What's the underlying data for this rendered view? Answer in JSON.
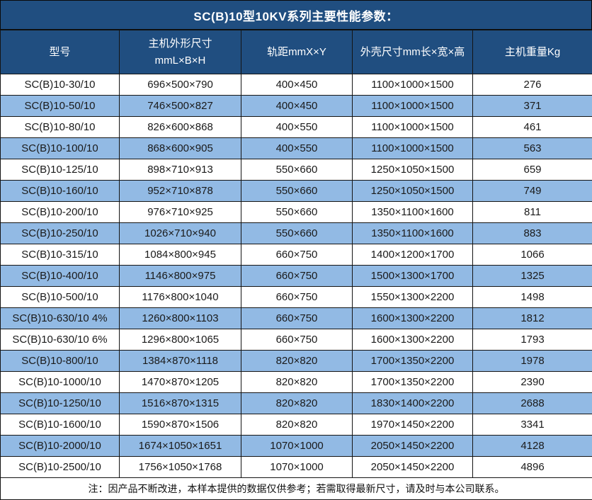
{
  "title": "SC(B)10型10KV系列主要性能参数：",
  "colors": {
    "header_bg": "#204E80",
    "alt_row_bg": "#92BAE4",
    "row_bg": "#FFFFFF",
    "header_text": "#FFFFFF",
    "body_text": "#1A1A1A",
    "border": "#141414"
  },
  "table": {
    "headers": {
      "model": "型号",
      "dims_line1": "主机外形尺寸",
      "dims_line2": "mmL×B×H",
      "rail": "轨距mmX×Y",
      "shell": "外壳尺寸mm长×宽×高",
      "weight": "主机重量Kg"
    },
    "rows": [
      [
        "SC(B)10-30/10",
        "696×500×790",
        "400×450",
        "1100×1000×1500",
        "276"
      ],
      [
        "SC(B)10-50/10",
        "746×500×827",
        "400×450",
        "1100×1000×1500",
        "371"
      ],
      [
        "SC(B)10-80/10",
        "826×600×868",
        "400×550",
        "1100×1000×1500",
        "461"
      ],
      [
        "SC(B)10-100/10",
        "868×600×905",
        "400×550",
        "1100×1000×1500",
        "563"
      ],
      [
        "SC(B)10-125/10",
        "898×710×913",
        "550×660",
        "1250×1050×1500",
        "659"
      ],
      [
        "SC(B)10-160/10",
        "952×710×878",
        "550×660",
        "1250×1050×1500",
        "749"
      ],
      [
        "SC(B)10-200/10",
        "976×710×925",
        "550×660",
        "1350×1100×1600",
        "811"
      ],
      [
        "SC(B)10-250/10",
        "1026×710×940",
        "550×660",
        "1350×1100×1600",
        "883"
      ],
      [
        "SC(B)10-315/10",
        "1084×800×945",
        "660×750",
        "1400×1200×1700",
        "1066"
      ],
      [
        "SC(B)10-400/10",
        "1146×800×975",
        "660×750",
        "1500×1300×1700",
        "1325"
      ],
      [
        "SC(B)10-500/10",
        "1176×800×1040",
        "660×750",
        "1550×1300×2200",
        "1498"
      ],
      [
        "SC(B)10-630/10 4%",
        "1260×800×1103",
        "660×750",
        "1600×1300×2200",
        "1812"
      ],
      [
        "SC(B)10-630/10 6%",
        "1296×800×1065",
        "660×750",
        "1600×1300×2200",
        "1793"
      ],
      [
        "SC(B)10-800/10",
        "1384×870×1118",
        "820×820",
        "1700×1350×2200",
        "1978"
      ],
      [
        "SC(B)10-1000/10",
        "1470×870×1205",
        "820×820",
        "1700×1350×2200",
        "2390"
      ],
      [
        "SC(B)10-1250/10",
        "1516×870×1315",
        "820×820",
        "1830×1400×2200",
        "2688"
      ],
      [
        "SC(B)10-1600/10",
        "1590×870×1506",
        "820×820",
        "1970×1450×2200",
        "3341"
      ],
      [
        "SC(B)10-2000/10",
        "1674×1050×1651",
        "1070×1000",
        "2050×1450×2200",
        "4128"
      ],
      [
        "SC(B)10-2500/10",
        "1756×1050×1768",
        "1070×1000",
        "2050×1450×2200",
        "4896"
      ]
    ]
  },
  "footer_note": "注：因产品不断改进，本样本提供的数据仅供参考；若需取得最新尺寸，请及时与本公司联系。"
}
